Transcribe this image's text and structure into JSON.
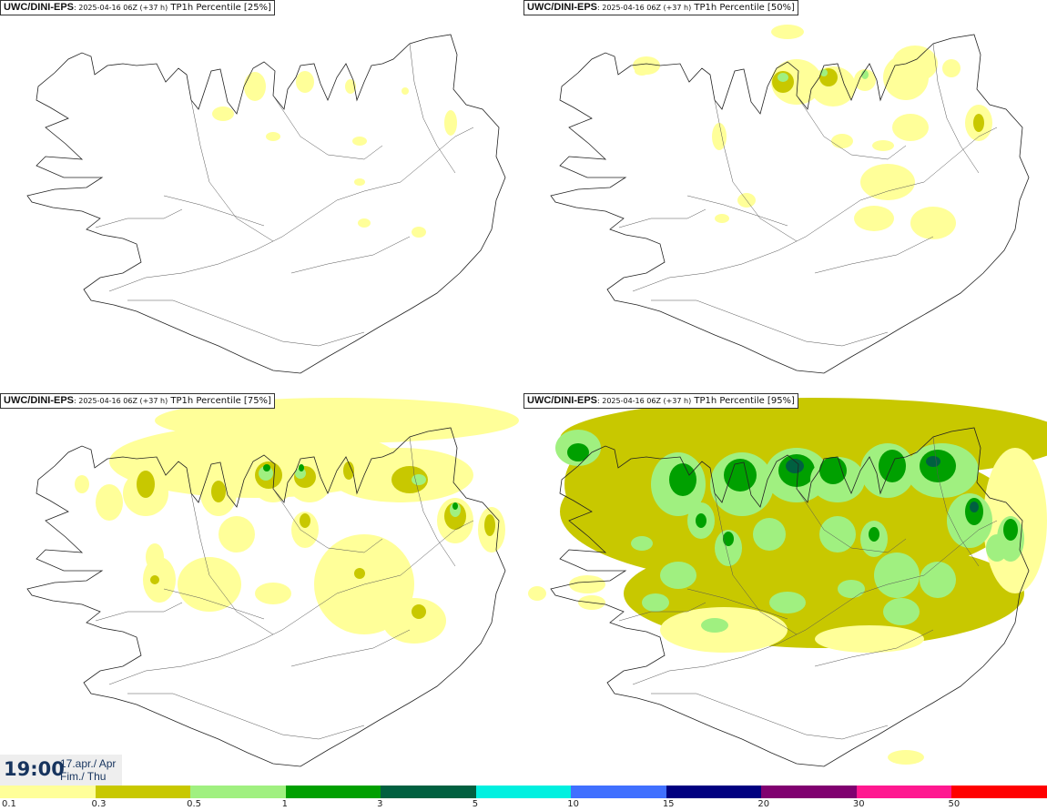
{
  "panels": [
    {
      "model": "UWC/DINI-EPS",
      "run": ": 2025-04-16 06Z (+37 h)",
      "variable": " TP1h Percentile [25%]"
    },
    {
      "model": "UWC/DINI-EPS",
      "run": ": 2025-04-16 06Z (+37 h)",
      "variable": " TP1h Percentile [50%]"
    },
    {
      "model": "UWC/DINI-EPS",
      "run": ": 2025-04-16 06Z (+37 h)",
      "variable": " TP1h Percentile [75%]"
    },
    {
      "model": "UWC/DINI-EPS",
      "run": ": 2025-04-16 06Z (+37 h)",
      "variable": " TP1h Percentile [95%]"
    }
  ],
  "valid_time": {
    "time": "19:00",
    "date_line1": "17.apr./ Apr",
    "date_line2": "Fim./ Thu"
  },
  "colorscale": {
    "levels": [
      "0.1",
      "0.3",
      "0.5",
      "1",
      "3",
      "5",
      "10",
      "15",
      "20",
      "30",
      "50"
    ],
    "colors": [
      "#ffff99",
      "#c8c800",
      "#a0f080",
      "#00a000",
      "#006040",
      "#00f0e0",
      "#4070ff",
      "#000080",
      "#800070",
      "#ff1890",
      "#ff0000"
    ]
  }
}
